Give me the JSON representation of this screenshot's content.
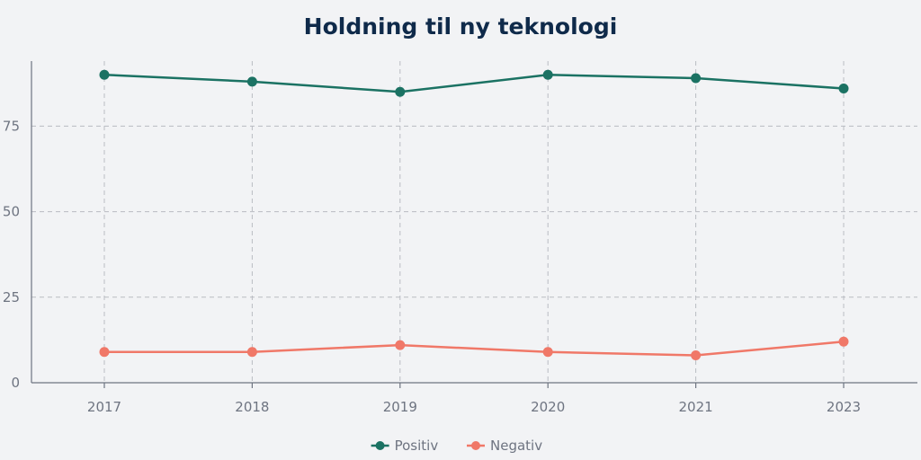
{
  "chart_data": {
    "type": "line",
    "title": "Holdning til ny teknologi",
    "xlabel": "",
    "ylabel": "",
    "categories": [
      "2017",
      "2018",
      "2019",
      "2020",
      "2021",
      "2023"
    ],
    "series": [
      {
        "name": "Positiv",
        "color": "#1b7263",
        "values": [
          90,
          88,
          85,
          90,
          89,
          86
        ]
      },
      {
        "name": "Negativ",
        "color": "#f07868",
        "values": [
          9,
          9,
          11,
          9,
          8,
          12
        ]
      }
    ],
    "ylim": [
      0,
      94
    ],
    "yticks": [
      "0",
      "25",
      "50",
      "75"
    ],
    "grid": true,
    "legend_position": "bottom-center"
  }
}
